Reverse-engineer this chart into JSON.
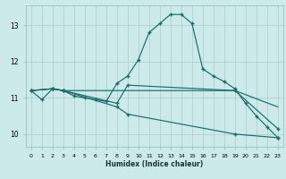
{
  "xlabel": "Humidex (Indice chaleur)",
  "xlim": [
    -0.5,
    23.5
  ],
  "ylim": [
    9.65,
    13.55
  ],
  "bg_color": "#cceaea",
  "grid_color": "#aacccc",
  "line_color": "#1a6b6b",
  "xtick_labels": [
    "0",
    "1",
    "2",
    "3",
    "4",
    "5",
    "6",
    "7",
    "8",
    "9",
    "10",
    "11",
    "12",
    "13",
    "14",
    "15",
    "16",
    "17",
    "18",
    "19",
    "20",
    "21",
    "22",
    "23"
  ],
  "xticks": [
    0,
    1,
    2,
    3,
    4,
    5,
    6,
    7,
    8,
    9,
    10,
    11,
    12,
    13,
    14,
    15,
    16,
    17,
    18,
    19,
    20,
    21,
    22,
    23
  ],
  "yticks": [
    10,
    11,
    12,
    13
  ],
  "curve1_x": [
    0,
    1,
    2,
    3,
    4,
    5,
    6,
    7,
    8,
    9,
    10,
    11,
    12,
    13,
    14,
    15,
    16,
    17,
    18,
    19,
    20,
    21,
    22,
    23
  ],
  "curve1_y": [
    11.2,
    10.95,
    11.25,
    11.2,
    11.05,
    11.0,
    10.95,
    10.9,
    11.4,
    11.6,
    12.05,
    12.8,
    13.05,
    13.3,
    13.3,
    13.05,
    11.8,
    11.6,
    11.45,
    11.25,
    10.85,
    10.5,
    10.2,
    9.9
  ],
  "curve1_marker": true,
  "curve2_x": [
    0,
    2,
    3,
    8,
    9,
    19,
    23
  ],
  "curve2_y": [
    11.2,
    11.25,
    11.2,
    10.85,
    11.35,
    11.2,
    10.15
  ],
  "curve2_marker": true,
  "curve3_x": [
    0,
    2,
    3,
    19,
    23
  ],
  "curve3_y": [
    11.2,
    11.25,
    11.2,
    11.2,
    10.75
  ],
  "curve3_marker": false,
  "curve4_x": [
    0,
    2,
    3,
    8,
    9,
    19,
    23
  ],
  "curve4_y": [
    11.2,
    11.25,
    11.2,
    10.75,
    10.55,
    10.0,
    9.9
  ],
  "curve4_marker": true
}
